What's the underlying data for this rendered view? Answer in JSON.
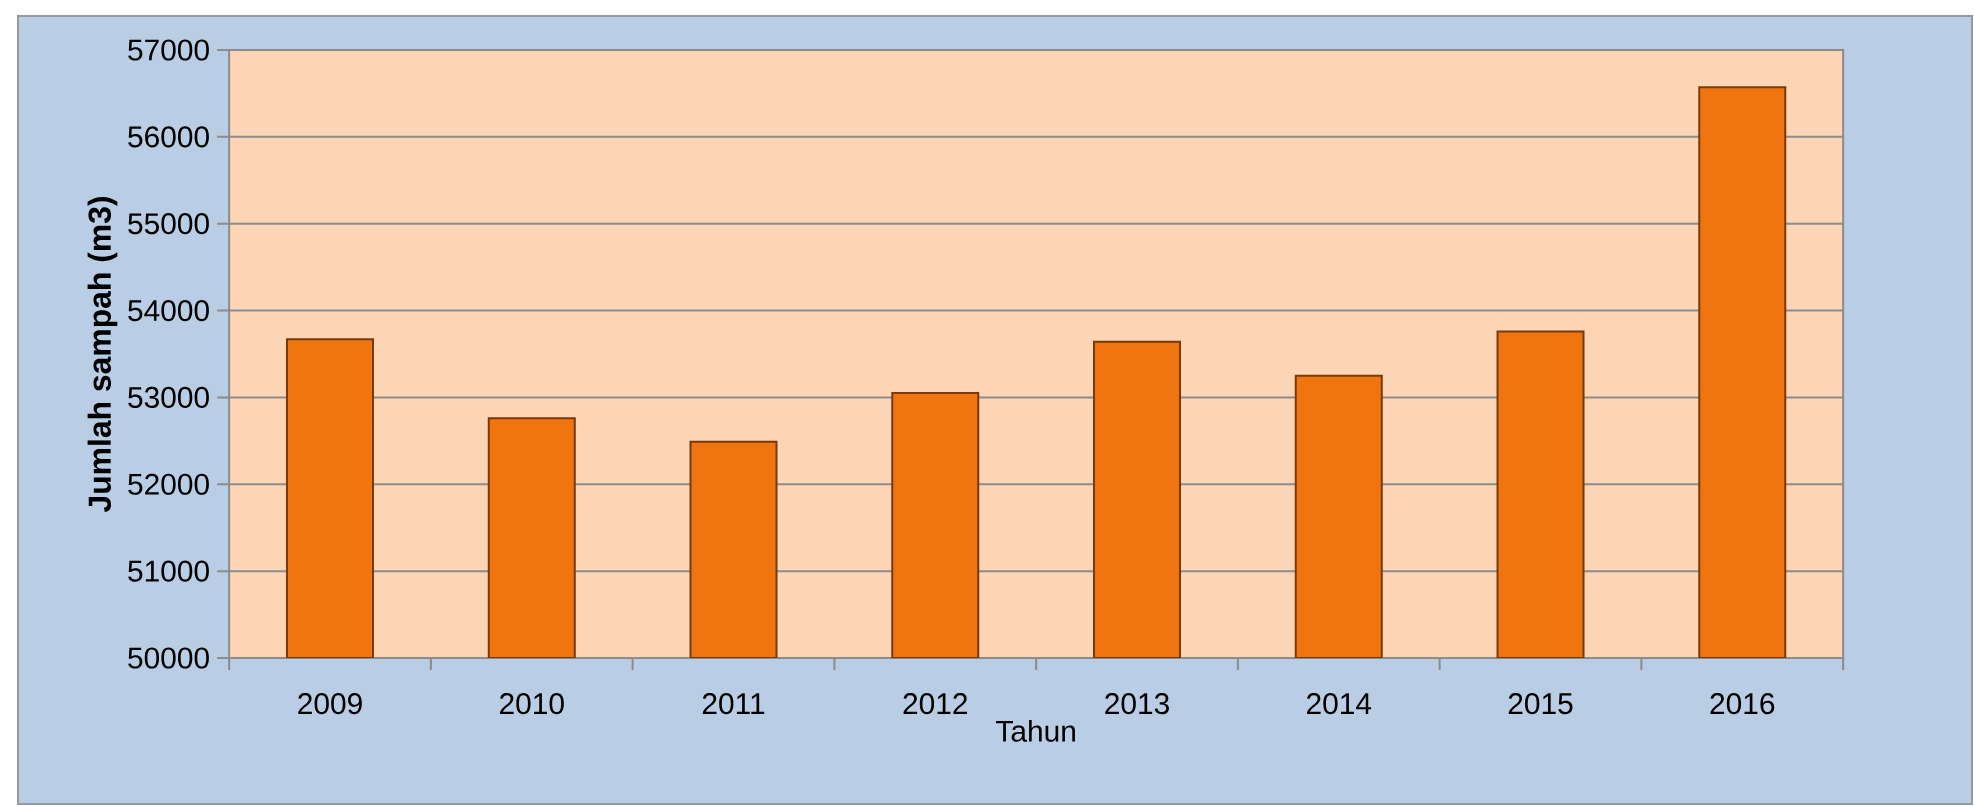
{
  "chart_data": {
    "type": "bar",
    "xlabel": "Tahun",
    "ylabel": "Jumlah sampah (m3)",
    "categories": [
      "2009",
      "2010",
      "2011",
      "2012",
      "2013",
      "2014",
      "2015",
      "2016"
    ],
    "values": [
      53670,
      52760,
      52490,
      53050,
      53640,
      53250,
      53760,
      56570
    ],
    "color": "#f07510",
    "ylim": [
      50000,
      57000
    ],
    "yticks": [
      50000,
      51000,
      52000,
      53000,
      54000,
      55000,
      56000,
      57000
    ],
    "grid": "y"
  }
}
